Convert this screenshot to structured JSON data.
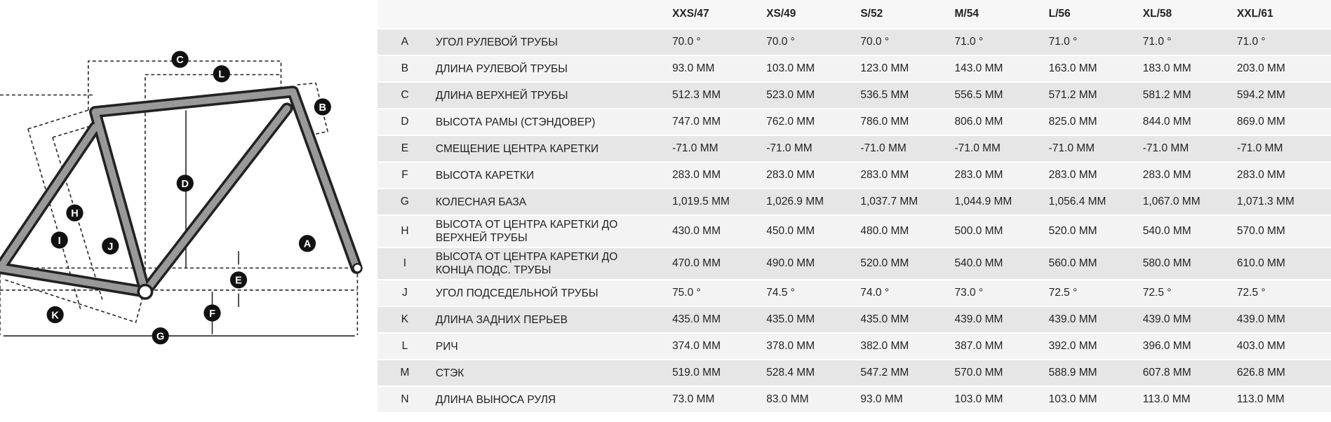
{
  "diagram": {
    "labels": [
      "A",
      "B",
      "C",
      "D",
      "E",
      "F",
      "G",
      "H",
      "I",
      "J",
      "K",
      "L"
    ]
  },
  "table": {
    "header": [
      "XXS/47",
      "XS/49",
      "S/52",
      "M/54",
      "L/56",
      "XL/58",
      "XXL/61"
    ],
    "rows": [
      [
        "A",
        "УГОЛ РУЛЕВОЙ ТРУБЫ",
        "70.0 °",
        "70.0 °",
        "70.0 °",
        "71.0 °",
        "71.0 °",
        "71.0 °",
        "71.0 °"
      ],
      [
        "B",
        "ДЛИНА РУЛЕВОЙ ТРУБЫ",
        "93.0 MM",
        "103.0 MM",
        "123.0 MM",
        "143.0 MM",
        "163.0 MM",
        "183.0 MM",
        "203.0 MM"
      ],
      [
        "C",
        "ДЛИНА ВЕРХНЕЙ ТРУБЫ",
        "512.3 MM",
        "523.0 MM",
        "536.5 MM",
        "556.5 MM",
        "571.2 MM",
        "581.2 MM",
        "594.2 MM"
      ],
      [
        "D",
        "ВЫСОТА РАМЫ (СТЭНДОВЕР)",
        "747.0 MM",
        "762.0 MM",
        "786.0 MM",
        "806.0 MM",
        "825.0 MM",
        "844.0 MM",
        "869.0 MM"
      ],
      [
        "E",
        "СМЕЩЕНИЕ ЦЕНТРА КАРЕТКИ",
        "-71.0 MM",
        "-71.0 MM",
        "-71.0 MM",
        "-71.0 MM",
        "-71.0 MM",
        "-71.0 MM",
        "-71.0 MM"
      ],
      [
        "F",
        "ВЫСОТА КАРЕТКИ",
        "283.0 MM",
        "283.0 MM",
        "283.0 MM",
        "283.0 MM",
        "283.0 MM",
        "283.0 MM",
        "283.0 MM"
      ],
      [
        "G",
        "КОЛЕСНАЯ БАЗА",
        "1,019.5 MM",
        "1,026.9 MM",
        "1,037.7 MM",
        "1,044.9 MM",
        "1,056.4 MM",
        "1,067.0 MM",
        "1,071.3 MM"
      ],
      [
        "H",
        "ВЫСОТА ОТ ЦЕНТРА КАРЕТКИ ДО ВЕРХНЕЙ ТРУБЫ",
        "430.0 MM",
        "450.0 MM",
        "480.0 MM",
        "500.0 MM",
        "520.0 MM",
        "540.0 MM",
        "570.0 MM"
      ],
      [
        "I",
        "ВЫСОТА ОТ ЦЕНТРА КАРЕТКИ ДО КОНЦА ПОДС. ТРУБЫ",
        "470.0 MM",
        "490.0 MM",
        "520.0 MM",
        "540.0 MM",
        "560.0 MM",
        "580.0 MM",
        "610.0 MM"
      ],
      [
        "J",
        "УГОЛ ПОДСЕДЕЛЬНОЙ ТРУБЫ",
        "75.0 °",
        "74.5 °",
        "74.0 °",
        "73.0 °",
        "72.5 °",
        "72.5 °",
        "72.5 °"
      ],
      [
        "K",
        "ДЛИНА ЗАДНИХ ПЕРЬЕВ",
        "435.0 MM",
        "435.0 MM",
        "435.0 MM",
        "439.0 MM",
        "439.0 MM",
        "439.0 MM",
        "439.0 MM"
      ],
      [
        "L",
        "РИЧ",
        "374.0 MM",
        "378.0 MM",
        "382.0 MM",
        "387.0 MM",
        "392.0 MM",
        "396.0 MM",
        "403.0 MM"
      ],
      [
        "M",
        "СТЭК",
        "519.0 MM",
        "528.4 MM",
        "547.2 MM",
        "570.0 MM",
        "588.9 MM",
        "607.8 MM",
        "626.8 MM"
      ],
      [
        "N",
        "ДЛИНА ВЫНОСА РУЛЯ",
        "73.0 MM",
        "83.0 MM",
        "93.0 MM",
        "103.0 MM",
        "103.0 MM",
        "113.0 MM",
        "113.0 MM"
      ]
    ]
  }
}
